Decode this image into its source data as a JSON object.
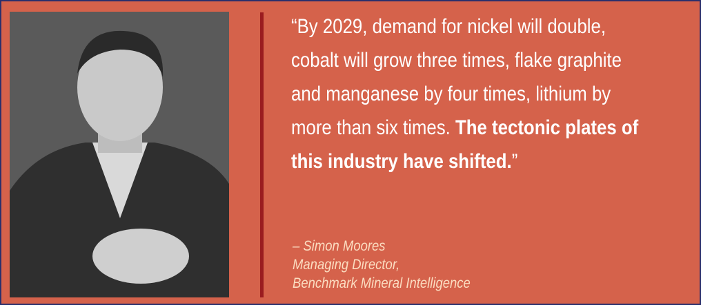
{
  "quote": {
    "lines": [
      [
        {
          "text": "“By 2029, demand for nickel will double,"
        }
      ],
      [
        {
          "text": "cobalt will grow three times, flake graphite"
        }
      ],
      [
        {
          "text": "and manganese by four times, lithium by"
        }
      ],
      [
        {
          "text": "more than six times. "
        },
        {
          "text": "The tectonic plates of",
          "bold": true
        }
      ],
      [
        {
          "text": "this industry have shifted.",
          "bold": true
        },
        {
          "text": "”"
        }
      ]
    ]
  },
  "attribution": {
    "lines": [
      "– Simon Moores",
      "Managing Director,",
      "Benchmark Mineral Intelligence"
    ]
  }
}
